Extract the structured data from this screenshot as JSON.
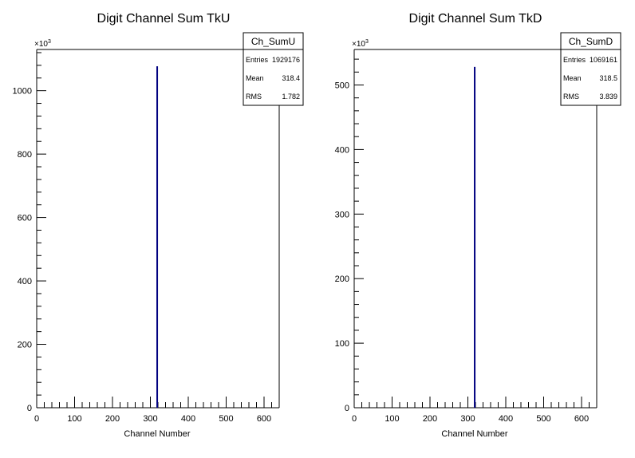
{
  "chart_data": [
    {
      "type": "bar",
      "title": "Digit Channel Sum TkU",
      "xlabel": "Channel Number",
      "ylabel": "",
      "xlim": [
        0,
        640
      ],
      "ylim": [
        0,
        1130
      ],
      "y_multiplier": "×10",
      "y_multiplier_exp": "3",
      "xticks": [
        "0",
        "100",
        "200",
        "300",
        "400",
        "500",
        "600"
      ],
      "yticks": [
        "0",
        "200",
        "400",
        "600",
        "800",
        "1000"
      ],
      "bars": [
        {
          "x": 318,
          "value": 1077
        }
      ],
      "line_color": "#000080",
      "stats": {
        "name": "Ch_SumU",
        "rows": [
          {
            "label": "Entries",
            "value": "1929176"
          },
          {
            "label": "Mean",
            "value": "318.4"
          },
          {
            "label": "RMS",
            "value": "1.782"
          }
        ]
      }
    },
    {
      "type": "bar",
      "title": "Digit Channel Sum TkD",
      "xlabel": "Channel Number",
      "ylabel": "",
      "xlim": [
        0,
        640
      ],
      "ylim": [
        0,
        555
      ],
      "y_multiplier": "×10",
      "y_multiplier_exp": "3",
      "xticks": [
        "0",
        "100",
        "200",
        "300",
        "400",
        "500",
        "600"
      ],
      "yticks": [
        "0",
        "100",
        "200",
        "300",
        "400",
        "500"
      ],
      "bars": [
        {
          "x": 318,
          "value": 528
        }
      ],
      "line_color": "#000080",
      "stats": {
        "name": "Ch_SumD",
        "rows": [
          {
            "label": "Entries",
            "value": "1069161"
          },
          {
            "label": "Mean",
            "value": "318.5"
          },
          {
            "label": "RMS",
            "value": "3.839"
          }
        ]
      }
    }
  ]
}
